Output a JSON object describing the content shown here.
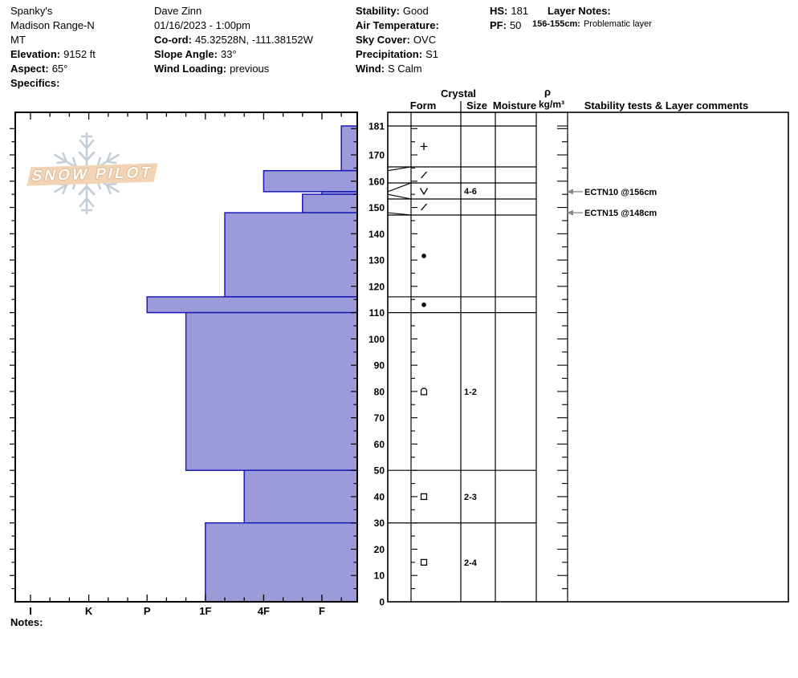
{
  "header": {
    "col1": {
      "line1": "Spanky's",
      "line2": "Madison Range-N",
      "line3": "MT",
      "elevation_label": "Elevation:",
      "elevation_value": "9152 ft",
      "aspect_label": "Aspect:",
      "aspect_value": "65°",
      "specifics_label": "Specifics:"
    },
    "col2": {
      "line1": "Dave Zinn",
      "line2": "01/16/2023 - 1:00pm",
      "coord_label": "Co-ord:",
      "coord_value": "45.32528N, -111.38152W",
      "slope_label": "Slope Angle:",
      "slope_value": "33°",
      "wind_loading_label": "Wind Loading:",
      "wind_loading_value": "previous"
    },
    "col3": {
      "stability_label": "Stability:",
      "stability_value": "Good",
      "air_temp_label": "Air Temperature:",
      "air_temp_value": "",
      "sky_label": "Sky Cover:",
      "sky_value": "OVC",
      "precip_label": "Precipitation:",
      "precip_value": "S1",
      "wind_label": "Wind:",
      "wind_value": "S Calm"
    },
    "col4": {
      "hs_label": "HS:",
      "hs_value": "181",
      "pf_label": "PF:",
      "pf_value": "50"
    },
    "col5": {
      "layer_notes_label": "Layer Notes:",
      "note1_label": "156-155cm:",
      "note1_value": "Problematic layer"
    }
  },
  "logo": {
    "text": "SNOW PILOT",
    "banner_color": "#f2d3b4",
    "flake_color": "#c5cfdc"
  },
  "notes_label": "Notes:",
  "chart_data": {
    "type": "bar",
    "title": "Snow pit hardness profile",
    "orientation": "horizontal",
    "depth_unit": "cm",
    "total_depth_cm": 181,
    "ylim": [
      0,
      181
    ],
    "depth_tick_labels": [
      181,
      170,
      160,
      150,
      140,
      130,
      120,
      110,
      100,
      90,
      80,
      70,
      60,
      50,
      40,
      30,
      20,
      10,
      0
    ],
    "hardness_categories": [
      "I",
      "K",
      "P",
      "1F",
      "4F",
      "F"
    ],
    "layers": [
      {
        "top": 181,
        "bottom": 164,
        "hardness": "F-",
        "form": "PP",
        "form_name": "precipitation-particles",
        "size": "",
        "moisture": "",
        "density": ""
      },
      {
        "top": 164,
        "bottom": 156,
        "hardness": "4F",
        "form": "DF",
        "form_name": "decomposing-fragments",
        "size": "",
        "moisture": "",
        "density": ""
      },
      {
        "top": 156,
        "bottom": 155,
        "hardness": "F",
        "form": "SH",
        "form_name": "surface-hoar",
        "size": "4-6",
        "moisture": "",
        "density": ""
      },
      {
        "top": 155,
        "bottom": 148,
        "hardness": "F+",
        "form": "DF",
        "form_name": "decomposing-fragments",
        "size": "",
        "moisture": "",
        "density": ""
      },
      {
        "top": 148,
        "bottom": 116,
        "hardness": "1F-",
        "form": "RG",
        "form_name": "rounded-grains",
        "size": "",
        "moisture": "",
        "density": ""
      },
      {
        "top": 116,
        "bottom": 110,
        "hardness": "P",
        "form": "RG",
        "form_name": "rounded-grains",
        "size": "",
        "moisture": "",
        "density": ""
      },
      {
        "top": 110,
        "bottom": 50,
        "hardness": "1F+",
        "form": "FCxr",
        "form_name": "rounding-facets",
        "size": "1-2",
        "moisture": "",
        "density": ""
      },
      {
        "top": 50,
        "bottom": 30,
        "hardness": "4F+",
        "form": "FC",
        "form_name": "facets",
        "size": "2-3",
        "moisture": "",
        "density": ""
      },
      {
        "top": 30,
        "bottom": 0,
        "hardness": "1F",
        "form": "FC",
        "form_name": "facets",
        "size": "2-4",
        "moisture": "",
        "density": ""
      }
    ],
    "tests": [
      {
        "label": "ECTN10 @156cm",
        "depth": 156
      },
      {
        "label": "ECTN15 @148cm",
        "depth": 148
      }
    ],
    "panel_headers": {
      "crystal": "Crystal",
      "form": "Form",
      "size": "Size",
      "moisture": "Moisture",
      "rho": "ρ",
      "rho_units": "kg/m³",
      "stability": "Stability tests & Layer comments"
    },
    "colors": {
      "bar_fill": "#9b9bd9",
      "bar_stroke": "#1a1ab8",
      "axis": "#000000",
      "test_arrow": "#888888"
    },
    "legend_position": "none",
    "grid": false
  }
}
